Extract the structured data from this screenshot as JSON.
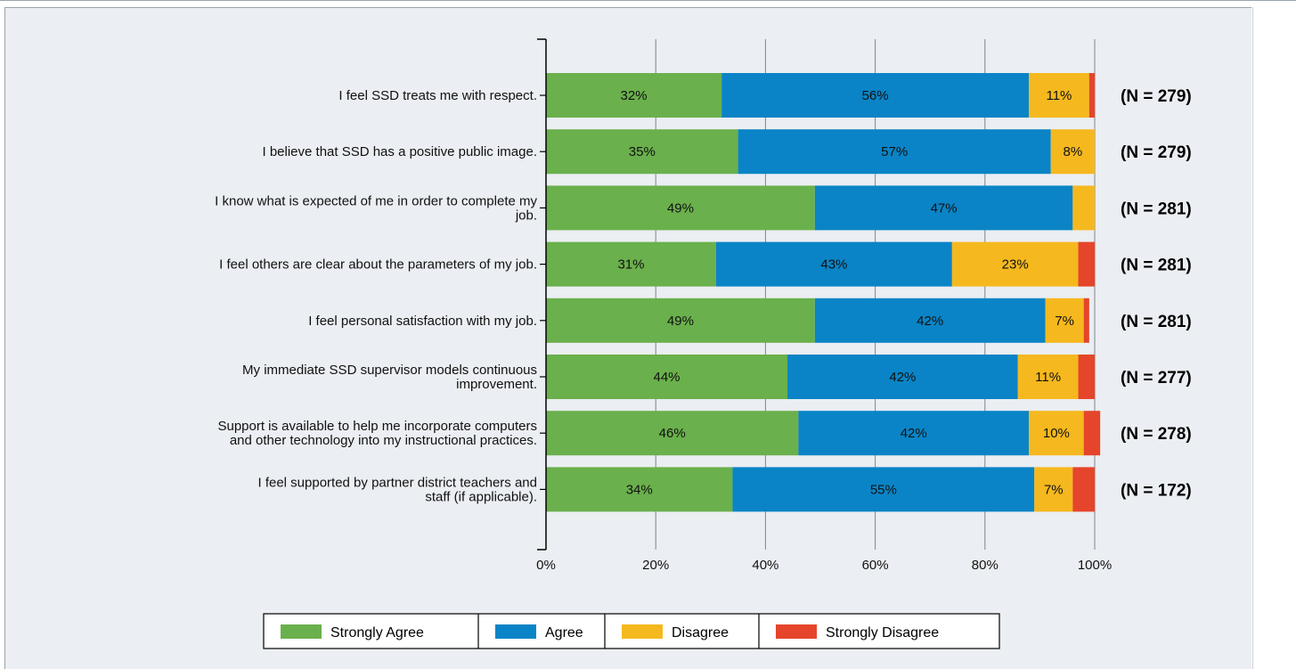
{
  "chart_data": {
    "type": "bar",
    "orientation": "horizontal",
    "stacked": true,
    "categories": [
      [
        "I feel SSD treats me with respect."
      ],
      [
        "I believe that SSD has a positive public image."
      ],
      [
        "I know what is expected of me in order to complete my",
        "job."
      ],
      [
        "I feel others are clear about the parameters of my job."
      ],
      [
        "I feel personal satisfaction with my job."
      ],
      [
        "My immediate SSD supervisor models continuous",
        "improvement."
      ],
      [
        "Support is available to help me incorporate computers",
        "and other technology into my instructional practices."
      ],
      [
        "I feel supported by partner district teachers and",
        "staff (if applicable)."
      ]
    ],
    "series": [
      {
        "name": "Strongly Agree",
        "color": "#6ab04c",
        "values": [
          32,
          35,
          49,
          31,
          49,
          44,
          46,
          34
        ]
      },
      {
        "name": "Agree",
        "color": "#0a84c6",
        "values": [
          56,
          57,
          47,
          43,
          42,
          42,
          42,
          55
        ]
      },
      {
        "name": "Disagree",
        "color": "#f5b81e",
        "values": [
          11,
          8,
          4,
          23,
          7,
          11,
          10,
          7
        ]
      },
      {
        "name": "Strongly Disagree",
        "color": "#e5452b",
        "values": [
          1,
          0,
          0,
          3,
          1,
          3,
          3,
          4
        ]
      }
    ],
    "data_labels": [
      [
        "32%",
        "56%",
        "11%",
        ""
      ],
      [
        "35%",
        "57%",
        "8%",
        ""
      ],
      [
        "49%",
        "47%",
        "",
        ""
      ],
      [
        "31%",
        "43%",
        "23%",
        ""
      ],
      [
        "49%",
        "42%",
        "7%",
        ""
      ],
      [
        "44%",
        "42%",
        "11%",
        ""
      ],
      [
        "46%",
        "42%",
        "10%",
        ""
      ],
      [
        "34%",
        "55%",
        "7%",
        ""
      ]
    ],
    "n_labels": [
      "(N = 279)",
      "(N = 279)",
      "(N = 281)",
      "(N = 281)",
      "(N = 281)",
      "(N = 277)",
      "(N = 278)",
      "(N = 172)"
    ],
    "xlim": [
      0,
      100
    ],
    "xticks": [
      0,
      20,
      40,
      60,
      80,
      100
    ],
    "xtick_labels": [
      "0%",
      "20%",
      "40%",
      "60%",
      "80%",
      "100%"
    ],
    "grid": true,
    "legend_position": "bottom-center"
  }
}
